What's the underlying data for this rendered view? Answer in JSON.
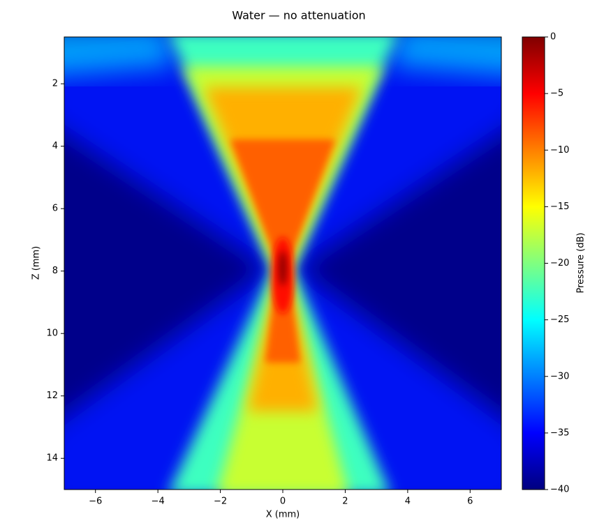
{
  "chart_data": {
    "type": "heatmap",
    "title": "Water — no attenuation",
    "x_label": "X (mm)",
    "y_label": "Z (mm)",
    "xlim": [
      -7,
      7
    ],
    "ylim": [
      0.5,
      15
    ],
    "y_inverted": true,
    "xticks": [
      {
        "value": -6,
        "label": "−6"
      },
      {
        "value": -4,
        "label": "−4"
      },
      {
        "value": -2,
        "label": "−2"
      },
      0,
      2,
      4,
      6
    ],
    "yticks": [
      2,
      4,
      6,
      8,
      10,
      12,
      14
    ],
    "colormap": "jet",
    "colorbar": {
      "label": "Pressure (dB)",
      "clim": [
        -40,
        0
      ],
      "ticks": [
        0,
        {
          "value": -5,
          "label": "−5"
        },
        {
          "value": -10,
          "label": "−10"
        },
        {
          "value": -15,
          "label": "−15"
        },
        {
          "value": -20,
          "label": "−20"
        },
        {
          "value": -25,
          "label": "−25"
        },
        {
          "value": -30,
          "label": "−30"
        },
        {
          "value": -35,
          "label": "−35"
        },
        {
          "value": -40,
          "label": "−40"
        }
      ]
    }
  }
}
